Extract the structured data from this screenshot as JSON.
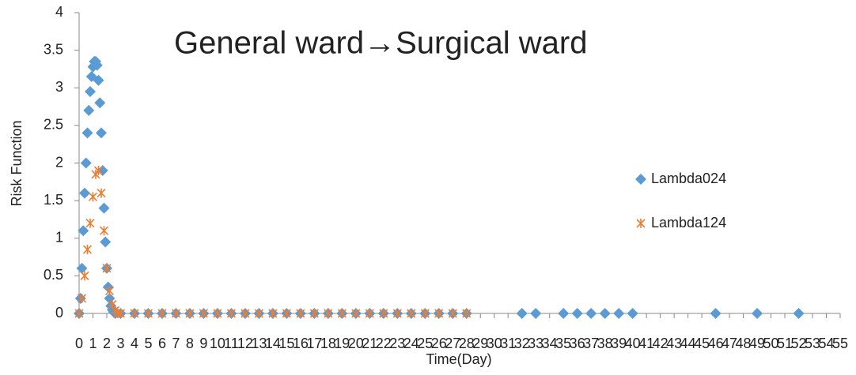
{
  "chart_data": {
    "type": "scatter",
    "title": "General ward→Surgical ward",
    "xlabel": "Time(Day)",
    "ylabel": "Risk Function",
    "xlim": [
      0,
      55
    ],
    "ylim": [
      0,
      4
    ],
    "xticks": [
      0,
      1,
      2,
      3,
      4,
      5,
      6,
      7,
      8,
      9,
      10,
      11,
      12,
      13,
      14,
      15,
      16,
      17,
      18,
      19,
      20,
      21,
      22,
      23,
      24,
      25,
      26,
      27,
      28,
      29,
      30,
      31,
      32,
      33,
      34,
      35,
      36,
      37,
      38,
      39,
      40,
      41,
      42,
      43,
      44,
      45,
      46,
      47,
      48,
      49,
      50,
      51,
      52,
      53,
      54,
      55
    ],
    "yticks": [
      0,
      0.5,
      1,
      1.5,
      2,
      2.5,
      3,
      3.5,
      4
    ],
    "legend": "right",
    "series": [
      {
        "name": "Lambda024",
        "color": "#5b9bd5",
        "marker": "diamond",
        "x": [
          0,
          0.1,
          0.2,
          0.3,
          0.4,
          0.5,
          0.6,
          0.7,
          0.8,
          0.9,
          1.0,
          1.1,
          1.2,
          1.3,
          1.4,
          1.5,
          1.6,
          1.7,
          1.8,
          1.9,
          2.0,
          2.1,
          2.2,
          2.3,
          2.4,
          2.5,
          2.6,
          3,
          4,
          5,
          6,
          7,
          8,
          9,
          10,
          11,
          12,
          13,
          14,
          15,
          16,
          17,
          18,
          19,
          20,
          21,
          22,
          23,
          24,
          25,
          26,
          27,
          28,
          32,
          33,
          35,
          36,
          37,
          38,
          39,
          40,
          46,
          49,
          52
        ],
        "values": [
          0,
          0.2,
          0.6,
          1.1,
          1.6,
          2.0,
          2.4,
          2.7,
          2.95,
          3.15,
          3.28,
          3.35,
          3.35,
          3.3,
          3.1,
          2.8,
          2.4,
          1.9,
          1.4,
          0.95,
          0.6,
          0.35,
          0.2,
          0.1,
          0.05,
          0.02,
          0,
          0,
          0,
          0,
          0,
          0,
          0,
          0,
          0,
          0,
          0,
          0,
          0,
          0,
          0,
          0,
          0,
          0,
          0,
          0,
          0,
          0,
          0,
          0,
          0,
          0,
          0,
          0,
          0,
          0,
          0,
          0,
          0,
          0,
          0,
          0,
          0,
          0
        ]
      },
      {
        "name": "Lambda124",
        "color": "#ed7d31",
        "marker": "star",
        "x": [
          0,
          0.2,
          0.4,
          0.6,
          0.8,
          1.0,
          1.2,
          1.4,
          1.6,
          1.8,
          2.0,
          2.2,
          2.4,
          2.6,
          2.8,
          3,
          4,
          5,
          6,
          7,
          8,
          9,
          10,
          11,
          12,
          13,
          14,
          15,
          16,
          17,
          18,
          19,
          20,
          21,
          22,
          23,
          24,
          25,
          26,
          27,
          28
        ],
        "values": [
          0,
          0.2,
          0.5,
          0.85,
          1.2,
          1.55,
          1.85,
          1.9,
          1.6,
          1.1,
          0.6,
          0.3,
          0.12,
          0.04,
          0,
          0,
          0,
          0,
          0,
          0,
          0,
          0,
          0,
          0,
          0,
          0,
          0,
          0,
          0,
          0,
          0,
          0,
          0,
          0,
          0,
          0,
          0,
          0,
          0,
          0,
          0
        ]
      }
    ]
  }
}
